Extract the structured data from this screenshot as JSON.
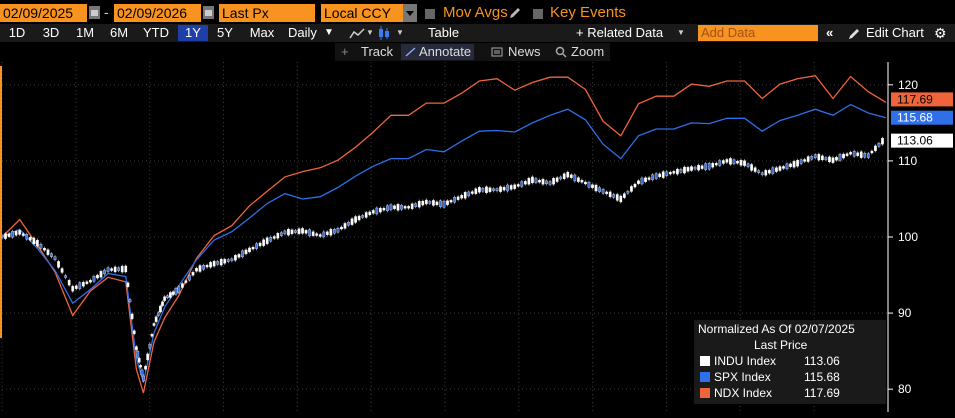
{
  "toolbar": {
    "start_date": "02/09/2025",
    "end_date": "02/09/2026",
    "field": "Last Px",
    "currency": "Local CCY",
    "mov_avgs": "Mov Avgs",
    "key_events": "Key Events"
  },
  "periods": [
    "1D",
    "3D",
    "1M",
    "6M",
    "YTD",
    "1Y",
    "5Y",
    "Max"
  ],
  "active_period": "1Y",
  "row2": {
    "frequency": "Daily",
    "table": "Table",
    "related_data": "+ Related Data",
    "add_data_placeholder": "Add Data",
    "edit_chart": "Edit Chart"
  },
  "row3": {
    "track": "Track",
    "annotate": "Annotate",
    "news": "News",
    "zoom": "Zoom"
  },
  "legend": {
    "title": "Normalized As Of 02/07/2025",
    "subtitle": "Last Price",
    "items": [
      {
        "name": "INDU Index",
        "value": "113.06",
        "color": "#ffffff"
      },
      {
        "name": "SPX Index",
        "value": "115.68",
        "color": "#2f6fe8"
      },
      {
        "name": "NDX Index",
        "value": "117.69",
        "color": "#f0643a"
      }
    ]
  },
  "chart_data": {
    "type": "line",
    "x_range": [
      "2025-02-07",
      "2026-02-09"
    ],
    "ylim": [
      77,
      123
    ],
    "yticks": [
      80,
      90,
      100,
      110,
      120
    ],
    "series": [
      {
        "name": "INDU Index",
        "color": "#ffffff",
        "last": 113.06,
        "x": [
          0,
          5,
          10,
          15,
          20,
          25,
          30,
          35,
          38,
          40,
          43,
          46,
          50,
          55,
          60,
          65,
          70,
          75,
          80,
          85,
          90,
          95,
          100,
          105,
          110,
          115,
          120,
          125,
          130,
          135,
          140,
          145,
          150,
          155,
          160,
          165,
          170,
          175,
          180,
          185,
          190,
          195,
          200,
          205,
          210,
          215,
          220,
          225,
          230,
          235,
          240,
          245,
          250
        ],
        "values": [
          100,
          100.6,
          99.2,
          97.2,
          93.2,
          94.2,
          95.7,
          95.8,
          85.4,
          81.4,
          88.5,
          91.9,
          93.1,
          95.7,
          96.5,
          97.0,
          98.3,
          99.5,
          100.6,
          100.8,
          100.2,
          100.9,
          102.3,
          103.3,
          103.9,
          103.9,
          104.6,
          104.3,
          105.3,
          106.2,
          106.2,
          106.6,
          107.5,
          107.1,
          108.2,
          107.1,
          106.0,
          105.0,
          107.2,
          108.0,
          108.5,
          109.0,
          109.3,
          110.0,
          109.7,
          108.3,
          109.0,
          109.7,
          110.6,
          110.1,
          111.0,
          110.7,
          113.06
        ]
      },
      {
        "name": "SPX Index",
        "color": "#2f6fe8",
        "last": 115.68,
        "x": [
          0,
          5,
          10,
          15,
          20,
          25,
          30,
          35,
          38,
          40,
          43,
          46,
          50,
          55,
          60,
          65,
          70,
          75,
          80,
          85,
          90,
          95,
          100,
          105,
          110,
          115,
          120,
          125,
          130,
          135,
          140,
          145,
          150,
          155,
          160,
          165,
          170,
          175,
          180,
          185,
          190,
          195,
          200,
          205,
          210,
          215,
          220,
          225,
          230,
          235,
          240,
          245,
          250
        ],
        "values": [
          100,
          101.0,
          98.5,
          95.6,
          91.3,
          93.1,
          95.2,
          94.8,
          84.0,
          80.9,
          87.4,
          90.8,
          93.6,
          97.0,
          99.6,
          100.7,
          102.5,
          104.4,
          105.7,
          105.0,
          105.3,
          106.5,
          108.0,
          109.3,
          110.3,
          110.3,
          111.5,
          111.2,
          112.6,
          113.9,
          114.0,
          113.8,
          115.0,
          116.0,
          116.8,
          115.4,
          112.2,
          110.3,
          113.3,
          114.2,
          114.2,
          115.0,
          114.9,
          115.6,
          115.6,
          113.9,
          115.3,
          116.0,
          116.8,
          116.0,
          117.4,
          116.3,
          115.68
        ]
      },
      {
        "name": "NDX Index",
        "color": "#f0643a",
        "last": 117.69,
        "x": [
          0,
          5,
          10,
          15,
          20,
          25,
          30,
          35,
          38,
          40,
          43,
          46,
          50,
          55,
          60,
          65,
          70,
          75,
          80,
          85,
          90,
          95,
          100,
          105,
          110,
          115,
          120,
          125,
          130,
          135,
          140,
          145,
          150,
          155,
          160,
          165,
          170,
          175,
          180,
          185,
          190,
          195,
          200,
          205,
          210,
          215,
          220,
          225,
          230,
          235,
          240,
          245,
          250
        ],
        "values": [
          100,
          102.3,
          98.9,
          95.4,
          89.7,
          92.9,
          94.7,
          94.1,
          82.6,
          79.5,
          86.2,
          89.4,
          92.3,
          97.2,
          100.2,
          101.5,
          104.1,
          106.0,
          107.9,
          108.6,
          109.1,
          110.1,
          111.8,
          113.8,
          116.0,
          116.0,
          117.6,
          117.6,
          118.9,
          120.5,
          120.8,
          119.3,
          120.3,
          121.0,
          121.0,
          119.4,
          115.2,
          113.3,
          117.5,
          118.5,
          118.5,
          120.1,
          119.8,
          120.5,
          120.5,
          118.2,
          120.1,
          120.8,
          121.2,
          118.2,
          121.1,
          119.1,
          117.69
        ]
      }
    ]
  }
}
